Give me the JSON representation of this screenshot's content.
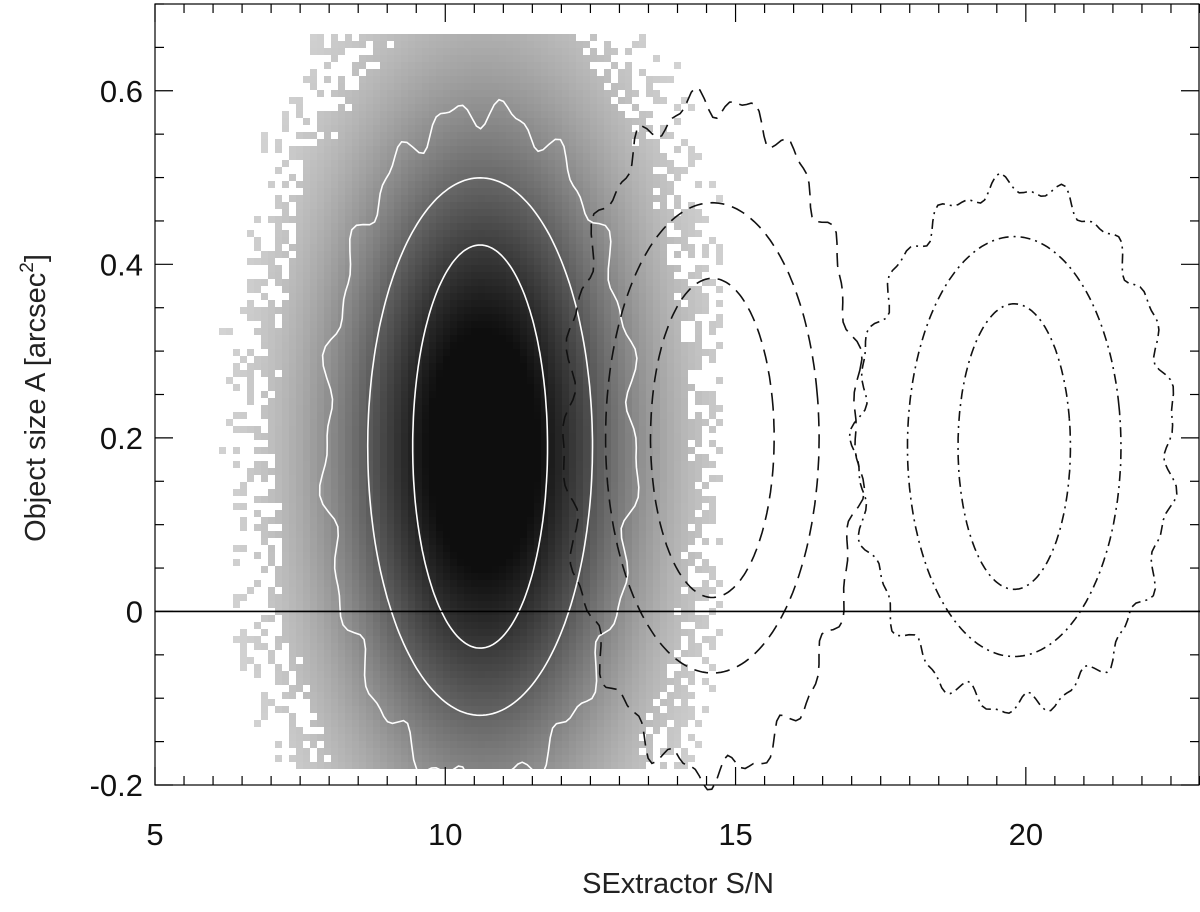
{
  "chart_data": {
    "type": "heatmap",
    "title": "",
    "xlabel": "SExtractor S/N",
    "ylabel_main": "Object size A [arcsec",
    "ylabel_sup": "2",
    "ylabel_end": "]",
    "xlim": [
      5,
      23
    ],
    "ylim": [
      -0.2,
      0.7
    ],
    "x_ticks": [
      5,
      10,
      15,
      20
    ],
    "x_tick_labels": [
      "5",
      "10",
      "15",
      "20"
    ],
    "x_minor_step": 0.5,
    "y_ticks": [
      -0.2,
      0,
      0.2,
      0.4,
      0.6
    ],
    "y_tick_labels": [
      "-0.2",
      "0",
      "0.2",
      "0.4",
      "0.6"
    ],
    "y_minor_step": 0.05,
    "reference_line_y": 0,
    "density": {
      "center": [
        10.6,
        0.19
      ],
      "color_low": "#dcdcdc",
      "color_high": "#0e0e0e"
    },
    "series": [
      {
        "style": "solid",
        "color": "#ffffff",
        "center": [
          10.6,
          0.19
        ],
        "contours": [
          {
            "level": 1,
            "x_half_width": 1.2,
            "y_half_height": 0.24
          },
          {
            "level": 2,
            "x_half_width": 2.0,
            "y_half_height": 0.32
          },
          {
            "level": 3,
            "x_half_width": 2.75,
            "y_half_height": 0.4
          }
        ]
      },
      {
        "style": "dashed",
        "color": "#111111",
        "center": [
          14.6,
          0.2
        ],
        "contours": [
          {
            "level": 1,
            "x_half_width": 1.1,
            "y_half_height": 0.19
          },
          {
            "level": 2,
            "x_half_width": 1.9,
            "y_half_height": 0.28
          },
          {
            "level": 3,
            "x_half_width": 2.6,
            "y_half_height": 0.4
          }
        ]
      },
      {
        "style": "dash-dot",
        "color": "#111111",
        "center": [
          19.8,
          0.19
        ],
        "contours": [
          {
            "level": 1,
            "x_half_width": 1.0,
            "y_half_height": 0.17
          },
          {
            "level": 2,
            "x_half_width": 1.9,
            "y_half_height": 0.25
          },
          {
            "level": 3,
            "x_half_width": 2.8,
            "y_half_height": 0.31
          }
        ]
      }
    ]
  }
}
